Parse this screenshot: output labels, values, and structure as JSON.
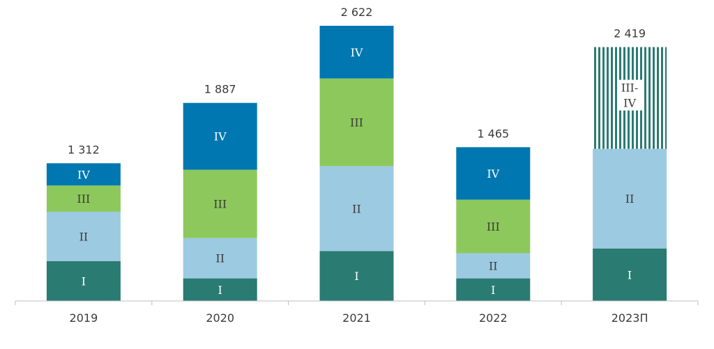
{
  "chart_data": {
    "type": "bar",
    "stacked": true,
    "title": "",
    "xlabel": "",
    "ylabel": "",
    "ylim": [
      0,
      2622
    ],
    "grid": false,
    "legend": "none",
    "categories": [
      "2019",
      "2020",
      "2021",
      "2022",
      "2023П"
    ],
    "totals": [
      "1 312",
      "1 887",
      "2 622",
      "1 465",
      "2 419"
    ],
    "series": [
      {
        "name": "I",
        "color": "#2a7b72",
        "values": [
          380,
          215,
          475,
          215,
          500
        ]
      },
      {
        "name": "II",
        "color": "#9ccae0",
        "values": [
          470,
          385,
          810,
          240,
          950
        ]
      },
      {
        "name": "III",
        "color": "#8dc85c",
        "values": [
          250,
          650,
          835,
          510,
          null
        ]
      },
      {
        "name": "IV",
        "color": "#0077b0",
        "values": [
          212,
          637,
          502,
          500,
          null
        ]
      },
      {
        "name": "III-\nIV",
        "color": "#2a7b72",
        "pattern": "vertical-stripes",
        "values": [
          null,
          null,
          null,
          null,
          969
        ]
      }
    ]
  }
}
